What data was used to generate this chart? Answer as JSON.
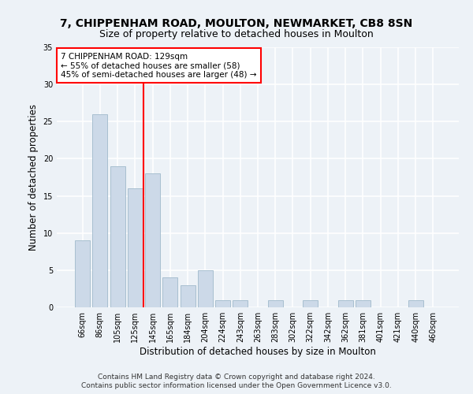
{
  "title1": "7, CHIPPENHAM ROAD, MOULTON, NEWMARKET, CB8 8SN",
  "title2": "Size of property relative to detached houses in Moulton",
  "xlabel": "Distribution of detached houses by size in Moulton",
  "ylabel": "Number of detached properties",
  "categories": [
    "66sqm",
    "86sqm",
    "105sqm",
    "125sqm",
    "145sqm",
    "165sqm",
    "184sqm",
    "204sqm",
    "224sqm",
    "243sqm",
    "263sqm",
    "283sqm",
    "302sqm",
    "322sqm",
    "342sqm",
    "362sqm",
    "381sqm",
    "401sqm",
    "421sqm",
    "440sqm",
    "460sqm"
  ],
  "values": [
    9,
    26,
    19,
    16,
    18,
    4,
    3,
    5,
    1,
    1,
    0,
    1,
    0,
    1,
    0,
    1,
    1,
    0,
    0,
    1,
    0
  ],
  "bar_color": "#ccd9e8",
  "bar_edge_color": "#a8bfd0",
  "ylim": [
    0,
    35
  ],
  "yticks": [
    0,
    5,
    10,
    15,
    20,
    25,
    30,
    35
  ],
  "red_line_x": 3.5,
  "annotation_line1": "7 CHIPPENHAM ROAD: 129sqm",
  "annotation_line2": "← 55% of detached houses are smaller (58)",
  "annotation_line3": "45% of semi-detached houses are larger (48) →",
  "footnote1": "Contains HM Land Registry data © Crown copyright and database right 2024.",
  "footnote2": "Contains public sector information licensed under the Open Government Licence v3.0.",
  "bg_color": "#edf2f7",
  "plot_bg_color": "#edf2f7",
  "grid_color": "#ffffff",
  "title1_fontsize": 10,
  "title2_fontsize": 9,
  "ylabel_fontsize": 8.5,
  "xlabel_fontsize": 8.5,
  "tick_fontsize": 7,
  "annotation_fontsize": 7.5,
  "footnote_fontsize": 6.5
}
